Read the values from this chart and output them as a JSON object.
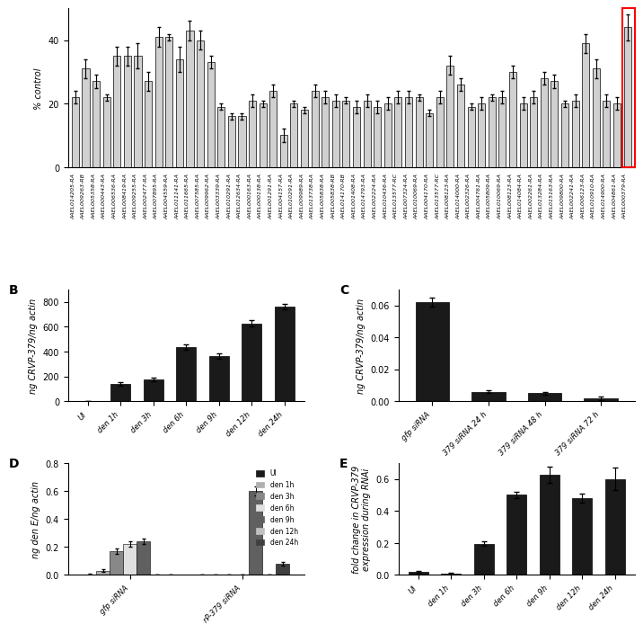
{
  "panel_A": {
    "labels": [
      "AAEL014205-RA",
      "AAEL009263-RB",
      "AAEL005358-RA",
      "AAEL000443-RA",
      "AAEL006536-RA",
      "AAEL008419-RA",
      "AAEL009255-RA",
      "AAEL002477-RA",
      "AAEL007895-RA",
      "AAEL004559-RA",
      "AAEL011141-RA",
      "AAEL011665-RA",
      "AAEL007585-RA",
      "AAEL009962-RA",
      "AAEL003339-RA",
      "AAEL010291-RA",
      "AAEL012634-RA",
      "AAEL000163-RA",
      "AAEL000138-RA",
      "AAEL001291-RA",
      "AAEL004157-RA",
      "AAEL010291-RA",
      "AAEL009989-RA",
      "AAEL013738-RA",
      "AAEL005838-RA",
      "AAEL005838-RB",
      "AAEL014170-RB",
      "AAEL001408-RA",
      "AAEL014793-RA",
      "AAEL002224-RA",
      "AAEL010436-RA",
      "AAEL013577-RC",
      "AAEL007324-RA",
      "AAEL010069-RA",
      "AAEL004170-RA",
      "AAEL013577-RC",
      "AAEL008123-RA",
      "AAEL014000-RA",
      "AAEL002326-RA",
      "AAEL004761-RA",
      "AAEL005809-RA",
      "AAEL010069-RA",
      "AAEL008123-RA",
      "AAEL014084-RA",
      "AAEL002261-RA",
      "AAEL013284-RA",
      "AAEL015163-RA",
      "AAEL009800-RA",
      "AAEL002241-RA",
      "AAEL006123-RA",
      "AAEL010910-RA",
      "AAEL014900-RA",
      "AAEL004861-RA",
      "AAEL000379-RA"
    ],
    "values": [
      22,
      31,
      27,
      22,
      35,
      35,
      35,
      27,
      41,
      41,
      34,
      43,
      40,
      33,
      19,
      16,
      16,
      21,
      20,
      24,
      10,
      20,
      18,
      24,
      22,
      21,
      21,
      19,
      21,
      19,
      20,
      22,
      22,
      22,
      17,
      22,
      32,
      26,
      19,
      20,
      22,
      22,
      30,
      20,
      22,
      28,
      27,
      20,
      21,
      39,
      31,
      21,
      20,
      44
    ],
    "errors": [
      2,
      3,
      2,
      1,
      3,
      3,
      4,
      3,
      3,
      1,
      4,
      3,
      3,
      2,
      1,
      1,
      1,
      2,
      1,
      2,
      2,
      1,
      1,
      2,
      2,
      2,
      1,
      2,
      2,
      2,
      2,
      2,
      2,
      1,
      1,
      2,
      3,
      2,
      1,
      2,
      1,
      2,
      2,
      2,
      2,
      2,
      2,
      1,
      2,
      3,
      3,
      2,
      2,
      4
    ],
    "ylabel": "% control",
    "ylim": [
      0,
      50
    ],
    "bar_color": "#d0d0d0",
    "highlighted_last": true
  },
  "panel_B": {
    "categories": [
      "UI",
      "den 1h",
      "den 3h",
      "den 6h",
      "den 9h",
      "den 12h",
      "den 24h"
    ],
    "values": [
      0,
      140,
      175,
      435,
      365,
      625,
      760
    ],
    "errors": [
      0,
      15,
      15,
      20,
      20,
      25,
      20
    ],
    "ylabel": "ng CRVP-379/ng actin",
    "ylim": [
      0,
      900
    ],
    "bar_color": "#1a1a1a",
    "label": "B"
  },
  "panel_C": {
    "categories": [
      "gfp siRNA",
      "379 siRNA 24 h",
      "379 siRNA 48 h",
      "379 siRNA 72 h"
    ],
    "values": [
      0.062,
      0.006,
      0.005,
      0.002
    ],
    "errors": [
      0.003,
      0.001,
      0.001,
      0.001
    ],
    "ylabel": "ng CRVP-379/ng actin",
    "ylim": [
      0,
      0.07
    ],
    "bar_color": "#1a1a1a",
    "label": "C"
  },
  "panel_D": {
    "group_labels": [
      "gfp siRNA",
      "rP-379 siRNA"
    ],
    "series": [
      "UI",
      "den 1h",
      "den 3h",
      "den 6h",
      "den 9h",
      "den 12h",
      "den 24h"
    ],
    "colors": [
      "#1a1a1a",
      "#b0b0b0",
      "#888888",
      "#e0e0e0",
      "#606060",
      "#c0c0c0",
      "#404040"
    ],
    "values_gfp": [
      0.005,
      0.03,
      0.17,
      0.22,
      0.24,
      0.0,
      0.0
    ],
    "values_379": [
      0.005,
      0.005,
      0.005,
      0.005,
      0.6,
      0.005,
      0.08
    ],
    "errors_gfp": [
      0.002,
      0.01,
      0.02,
      0.02,
      0.02,
      0.0,
      0.0
    ],
    "errors_379": [
      0.001,
      0.001,
      0.001,
      0.001,
      0.03,
      0.001,
      0.01
    ],
    "ylabel": "ng den E/ng actin",
    "ylim": [
      0,
      0.8
    ],
    "label": "D"
  },
  "panel_E": {
    "categories": [
      "UI",
      "den 1h",
      "den 3h",
      "den 6h",
      "den 9h",
      "den 12h",
      "den 24h"
    ],
    "values": [
      0.02,
      0.01,
      0.195,
      0.5,
      0.625,
      0.48,
      0.6
    ],
    "errors": [
      0.005,
      0.005,
      0.015,
      0.02,
      0.05,
      0.03,
      0.07
    ],
    "ylabel": "fold change in CRVP-379\nexpression during RNAi",
    "ylim": [
      0,
      0.7
    ],
    "bar_color": "#1a1a1a",
    "label": "E"
  }
}
